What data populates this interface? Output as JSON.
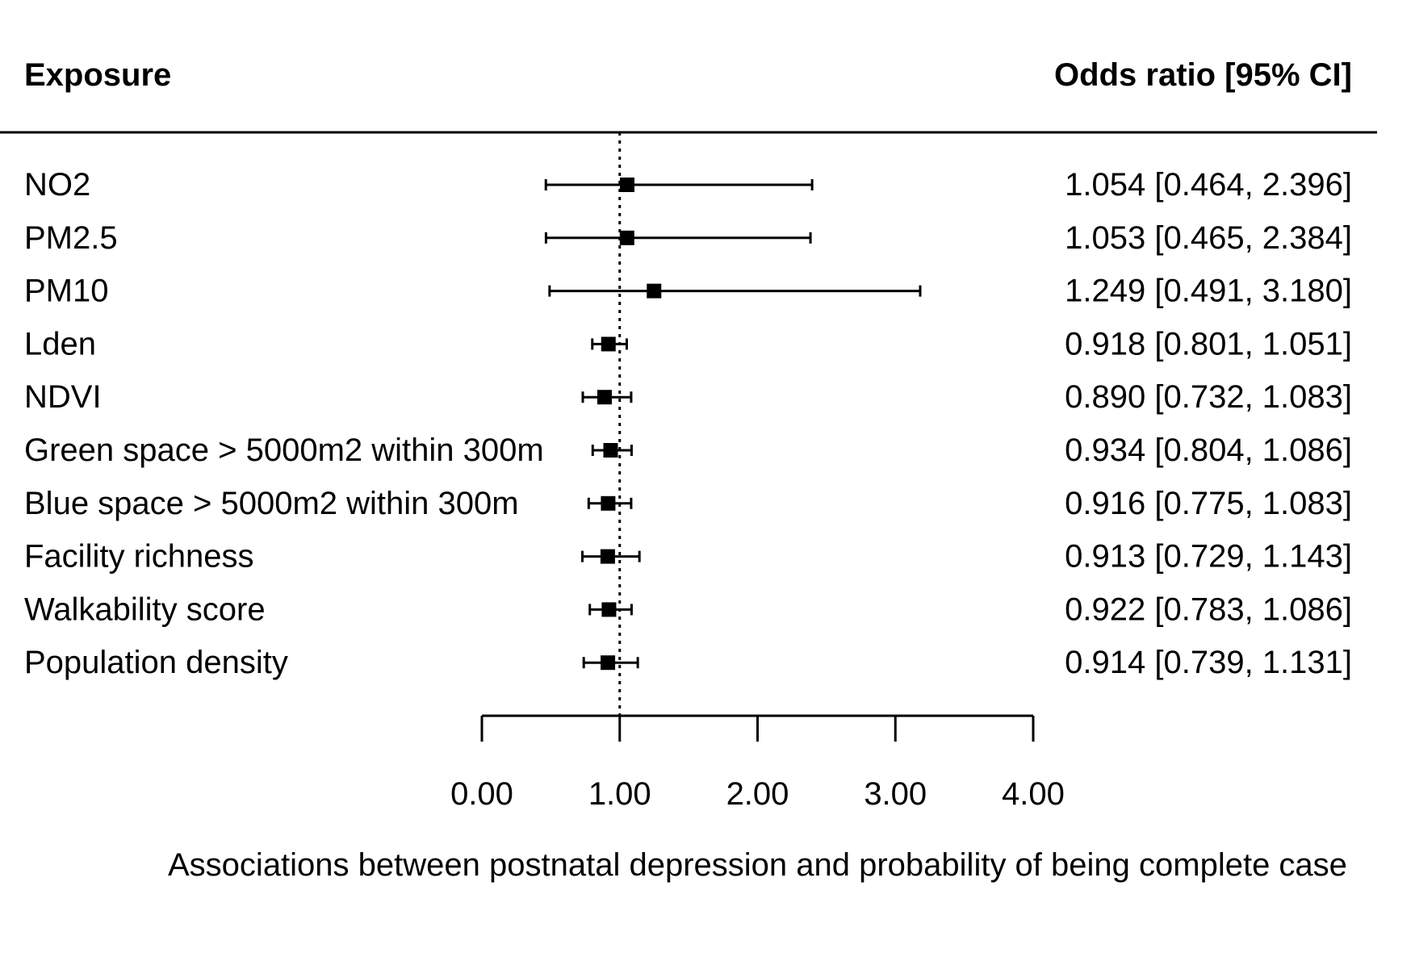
{
  "chart_data": {
    "type": "forest",
    "headers": {
      "left": "Exposure",
      "right": "Odds ratio [95% CI]"
    },
    "rows": [
      {
        "label": "NO2",
        "estimate": 1.054,
        "lower": 0.464,
        "upper": 2.396,
        "text": "1.054 [0.464, 2.396]"
      },
      {
        "label": "PM2.5",
        "estimate": 1.053,
        "lower": 0.465,
        "upper": 2.384,
        "text": "1.053 [0.465, 2.384]"
      },
      {
        "label": "PM10",
        "estimate": 1.249,
        "lower": 0.491,
        "upper": 3.18,
        "text": "1.249 [0.491, 3.180]"
      },
      {
        "label": "Lden",
        "estimate": 0.918,
        "lower": 0.801,
        "upper": 1.051,
        "text": "0.918 [0.801, 1.051]"
      },
      {
        "label": "NDVI",
        "estimate": 0.89,
        "lower": 0.732,
        "upper": 1.083,
        "text": "0.890 [0.732, 1.083]"
      },
      {
        "label": "Green space > 5000m2 within 300m",
        "estimate": 0.934,
        "lower": 0.804,
        "upper": 1.086,
        "text": "0.934 [0.804, 1.086]"
      },
      {
        "label": "Blue space > 5000m2 within 300m",
        "estimate": 0.916,
        "lower": 0.775,
        "upper": 1.083,
        "text": "0.916 [0.775, 1.083]"
      },
      {
        "label": "Facility richness",
        "estimate": 0.913,
        "lower": 0.729,
        "upper": 1.143,
        "text": "0.913 [0.729, 1.143]"
      },
      {
        "label": "Walkability score",
        "estimate": 0.922,
        "lower": 0.783,
        "upper": 1.086,
        "text": "0.922 [0.783, 1.086]"
      },
      {
        "label": "Population density",
        "estimate": 0.914,
        "lower": 0.739,
        "upper": 1.131,
        "text": "0.914 [0.739, 1.131]"
      }
    ],
    "xaxis": {
      "ticks": [
        0,
        1,
        2,
        3,
        4
      ],
      "tick_labels": [
        "0.00",
        "1.00",
        "2.00",
        "3.00",
        "4.00"
      ],
      "xlim": [
        0,
        4
      ]
    },
    "reference_line": 1,
    "xlabel": "Associations between postnatal depression and probability of being complete case"
  }
}
